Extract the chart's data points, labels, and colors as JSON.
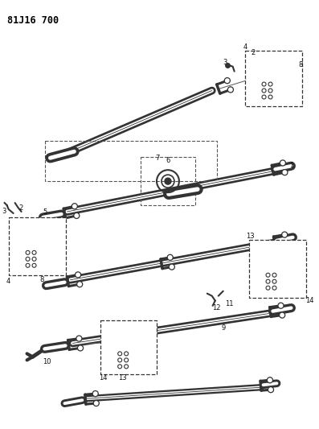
{
  "title": "81J16 700",
  "bg_color": "#ffffff",
  "line_color": "#000000",
  "fig_width": 3.97,
  "fig_height": 5.33,
  "dpi": 100,
  "title_fontsize": 8.5,
  "title_fontweight": "bold",
  "label_fontsize": 6.0
}
